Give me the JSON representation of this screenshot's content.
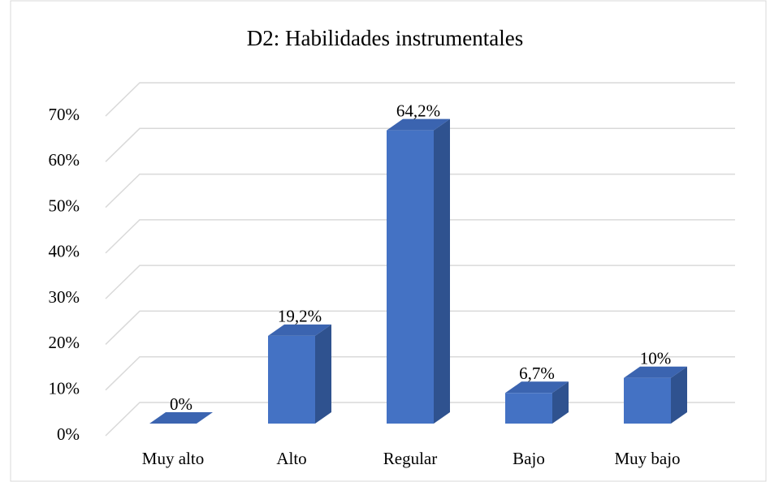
{
  "chart_data": {
    "type": "bar3d",
    "title": "D2: Habilidades instrumentales",
    "categories": [
      "Muy alto",
      "Alto",
      "Regular",
      "Bajo",
      "Muy bajo"
    ],
    "values": [
      0,
      19.2,
      64.2,
      6.7,
      10
    ],
    "value_labels": [
      "0%",
      "19,2%",
      "64,2%",
      "6,7%",
      "10%"
    ],
    "color": "#4472c4",
    "ylim": [
      0,
      70
    ],
    "yticks": [
      {
        "value": 0,
        "label": "0%"
      },
      {
        "value": 10,
        "label": "10%"
      },
      {
        "value": 20,
        "label": "20%"
      },
      {
        "value": 30,
        "label": "30%"
      },
      {
        "value": 40,
        "label": "40%"
      },
      {
        "value": 50,
        "label": "50%"
      },
      {
        "value": 60,
        "label": "60%"
      },
      {
        "value": 70,
        "label": "70%"
      }
    ],
    "grid": true
  }
}
